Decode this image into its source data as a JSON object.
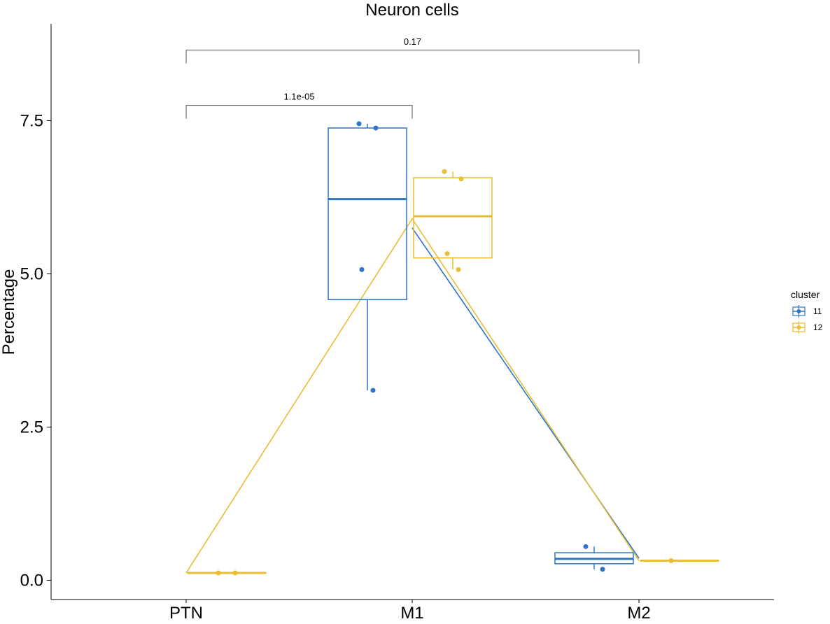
{
  "chart_data": {
    "type": "box",
    "title": "Neuron cells",
    "xlabel": "",
    "ylabel": "Percentage",
    "categories": [
      "PTN",
      "M1",
      "M2"
    ],
    "yticks": [
      0.0,
      2.5,
      5.0,
      7.5
    ],
    "ytick_labels": [
      "0.0",
      "2.5",
      "5.0",
      "7.5"
    ],
    "ylim": [
      -0.3,
      9.0
    ],
    "legend": {
      "title": "cluster",
      "position": "right"
    },
    "grid": false,
    "colors": {
      "11": "#2E75C6",
      "12": "#E8BE35"
    },
    "series": [
      {
        "name": "11",
        "boxes": [
          null,
          {
            "category": "M1",
            "min": 3.1,
            "q1": 4.58,
            "median": 6.22,
            "q3": 7.38,
            "max": 7.45
          },
          {
            "category": "M2",
            "min": 0.18,
            "q1": 0.27,
            "median": 0.35,
            "q3": 0.45,
            "max": 0.55
          }
        ],
        "points": [
          {
            "category": "M1",
            "y": 7.45
          },
          {
            "category": "M1",
            "y": 7.38
          },
          {
            "category": "M1",
            "y": 5.07
          },
          {
            "category": "M1",
            "y": 3.1
          },
          {
            "category": "M2",
            "y": 0.55
          },
          {
            "category": "M2",
            "y": 0.18
          }
        ],
        "means": [
          null,
          5.75,
          0.36
        ]
      },
      {
        "name": "12",
        "boxes": [
          {
            "category": "PTN",
            "min": 0.12,
            "q1": 0.12,
            "median": 0.12,
            "q3": 0.12,
            "max": 0.12
          },
          {
            "category": "M1",
            "min": 5.07,
            "q1": 5.26,
            "median": 5.94,
            "q3": 6.57,
            "max": 6.67
          },
          {
            "category": "M2",
            "min": 0.32,
            "q1": 0.32,
            "median": 0.32,
            "q3": 0.32,
            "max": 0.32
          }
        ],
        "points": [
          {
            "category": "PTN",
            "y": 0.12
          },
          {
            "category": "PTN",
            "y": 0.12
          },
          {
            "category": "M1",
            "y": 6.67
          },
          {
            "category": "M1",
            "y": 6.55
          },
          {
            "category": "M1",
            "y": 5.33
          },
          {
            "category": "M1",
            "y": 5.07
          },
          {
            "category": "M2",
            "y": 0.32
          }
        ],
        "means": [
          0.12,
          5.9,
          0.32
        ]
      }
    ],
    "comparisons": [
      {
        "from": "PTN",
        "to": "M1",
        "label": "1.1e-05",
        "y": 7.75
      },
      {
        "from": "PTN",
        "to": "M2",
        "label": "0.17",
        "y": 8.65
      }
    ]
  }
}
